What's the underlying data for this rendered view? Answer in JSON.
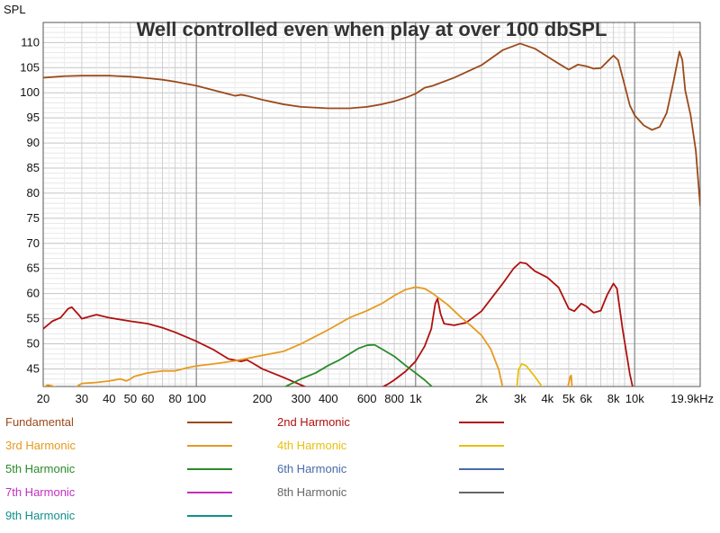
{
  "chart_data": {
    "type": "line",
    "title": "Well controlled even when play at over 100 dbSPL",
    "ylabel": "SPL",
    "xlabel": "",
    "x_scale": "log",
    "xlim": [
      20,
      19900
    ],
    "ylim": [
      41.5,
      114
    ],
    "grid": true,
    "x_ticks": [
      {
        "value": 20,
        "label": "20"
      },
      {
        "value": 30,
        "label": "30"
      },
      {
        "value": 40,
        "label": "40"
      },
      {
        "value": 50,
        "label": "50"
      },
      {
        "value": 60,
        "label": "60"
      },
      {
        "value": 80,
        "label": "80"
      },
      {
        "value": 100,
        "label": "100"
      },
      {
        "value": 200,
        "label": "200"
      },
      {
        "value": 300,
        "label": "300"
      },
      {
        "value": 400,
        "label": "400"
      },
      {
        "value": 600,
        "label": "600"
      },
      {
        "value": 800,
        "label": "800"
      },
      {
        "value": 1000,
        "label": "1k"
      },
      {
        "value": 2000,
        "label": "2k"
      },
      {
        "value": 3000,
        "label": "3k"
      },
      {
        "value": 4000,
        "label": "4k"
      },
      {
        "value": 5000,
        "label": "5k"
      },
      {
        "value": 6000,
        "label": "6k"
      },
      {
        "value": 8000,
        "label": "8k"
      },
      {
        "value": 10000,
        "label": "10k"
      },
      {
        "value": 19900,
        "label": "19.9kHz"
      }
    ],
    "y_ticks": [
      45,
      50,
      55,
      60,
      65,
      70,
      75,
      80,
      85,
      90,
      95,
      100,
      105,
      110
    ],
    "series": [
      {
        "name": "Fundamental",
        "color": "#9a4a1a",
        "visible": true,
        "points": [
          [
            20,
            103
          ],
          [
            25,
            103.3
          ],
          [
            30,
            103.4
          ],
          [
            40,
            103.4
          ],
          [
            50,
            103.2
          ],
          [
            60,
            102.9
          ],
          [
            70,
            102.6
          ],
          [
            80,
            102.2
          ],
          [
            100,
            101.4
          ],
          [
            120,
            100.5
          ],
          [
            150,
            99.4
          ],
          [
            160,
            99.6
          ],
          [
            170,
            99.4
          ],
          [
            200,
            98.6
          ],
          [
            250,
            97.7
          ],
          [
            300,
            97.2
          ],
          [
            400,
            96.9
          ],
          [
            500,
            96.9
          ],
          [
            600,
            97.2
          ],
          [
            700,
            97.7
          ],
          [
            800,
            98.3
          ],
          [
            900,
            99
          ],
          [
            1000,
            99.8
          ],
          [
            1100,
            101
          ],
          [
            1200,
            101.4
          ],
          [
            1500,
            103
          ],
          [
            2000,
            105.5
          ],
          [
            2500,
            108.5
          ],
          [
            3000,
            109.8
          ],
          [
            3500,
            108.8
          ],
          [
            4000,
            107.2
          ],
          [
            4500,
            105.8
          ],
          [
            5000,
            104.6
          ],
          [
            5500,
            105.6
          ],
          [
            6000,
            105.3
          ],
          [
            6500,
            104.8
          ],
          [
            7000,
            104.9
          ],
          [
            7500,
            106.2
          ],
          [
            8000,
            107.4
          ],
          [
            8400,
            106.5
          ],
          [
            9000,
            101.5
          ],
          [
            9500,
            97.5
          ],
          [
            10000,
            95.5
          ],
          [
            11000,
            93.5
          ],
          [
            12000,
            92.6
          ],
          [
            13000,
            93.2
          ],
          [
            14000,
            96
          ],
          [
            15000,
            102
          ],
          [
            16000,
            108.2
          ],
          [
            16500,
            106.5
          ],
          [
            17000,
            100.5
          ],
          [
            18000,
            95.5
          ],
          [
            19000,
            88.5
          ],
          [
            19900,
            77.5
          ]
        ]
      },
      {
        "name": "2nd Harmonic",
        "color": "#b01010",
        "visible": true,
        "points": [
          [
            20,
            53
          ],
          [
            22,
            54.5
          ],
          [
            24,
            55.2
          ],
          [
            26,
            57
          ],
          [
            27,
            57.3
          ],
          [
            29,
            55.8
          ],
          [
            30,
            55
          ],
          [
            33,
            55.5
          ],
          [
            35,
            55.8
          ],
          [
            40,
            55.2
          ],
          [
            50,
            54.5
          ],
          [
            60,
            54
          ],
          [
            70,
            53.2
          ],
          [
            80,
            52.3
          ],
          [
            100,
            50.5
          ],
          [
            120,
            48.8
          ],
          [
            140,
            47
          ],
          [
            160,
            46.5
          ],
          [
            170,
            46.8
          ],
          [
            180,
            46.2
          ],
          [
            200,
            45
          ],
          [
            250,
            43.3
          ],
          [
            300,
            41.8
          ],
          [
            320,
            41.3
          ]
        ]
      },
      {
        "name": "2nd Harmonic",
        "color": "#b01010",
        "visible": true,
        "points": [
          [
            700,
            41.3
          ],
          [
            750,
            42
          ],
          [
            800,
            42.8
          ],
          [
            900,
            44.5
          ],
          [
            1000,
            46.5
          ],
          [
            1100,
            49.5
          ],
          [
            1180,
            53
          ],
          [
            1230,
            58
          ],
          [
            1260,
            59
          ],
          [
            1300,
            56
          ],
          [
            1350,
            54
          ],
          [
            1500,
            53.7
          ],
          [
            1700,
            54.2
          ],
          [
            2000,
            56.5
          ],
          [
            2500,
            62
          ],
          [
            2800,
            65
          ],
          [
            3000,
            66.2
          ],
          [
            3200,
            66
          ],
          [
            3500,
            64.5
          ],
          [
            4000,
            63.2
          ],
          [
            4500,
            61.2
          ],
          [
            5000,
            57
          ],
          [
            5300,
            56.5
          ],
          [
            5700,
            58
          ],
          [
            6000,
            57.5
          ],
          [
            6500,
            56.2
          ],
          [
            7000,
            56.6
          ],
          [
            7500,
            59.8
          ],
          [
            8000,
            62
          ],
          [
            8300,
            61
          ],
          [
            8800,
            53
          ],
          [
            9500,
            44
          ],
          [
            9800,
            41.3
          ]
        ]
      },
      {
        "name": "3rd Harmonic",
        "color": "#e69a20",
        "visible": true,
        "points": [
          [
            20,
            41.3
          ],
          [
            21,
            41.8
          ],
          [
            22,
            41.6
          ],
          [
            23,
            41.3
          ]
        ]
      },
      {
        "name": "3rd Harmonic",
        "color": "#e69a20",
        "visible": true,
        "points": [
          [
            28,
            41.3
          ],
          [
            30,
            42.1
          ],
          [
            35,
            42.3
          ],
          [
            40,
            42.6
          ],
          [
            45,
            43
          ],
          [
            48,
            42.6
          ],
          [
            50,
            43
          ],
          [
            52,
            43.5
          ],
          [
            60,
            44.2
          ],
          [
            70,
            44.6
          ],
          [
            80,
            44.6
          ],
          [
            85,
            44.9
          ],
          [
            90,
            45.2
          ],
          [
            100,
            45.6
          ],
          [
            120,
            46
          ],
          [
            150,
            46.6
          ],
          [
            200,
            47.7
          ],
          [
            250,
            48.5
          ],
          [
            300,
            50
          ],
          [
            350,
            51.5
          ],
          [
            400,
            52.8
          ],
          [
            500,
            55.2
          ],
          [
            600,
            56.6
          ],
          [
            700,
            58
          ],
          [
            800,
            59.6
          ],
          [
            900,
            60.8
          ],
          [
            1000,
            61.3
          ],
          [
            1100,
            61
          ],
          [
            1200,
            60
          ],
          [
            1400,
            57.8
          ],
          [
            1600,
            55.4
          ],
          [
            1800,
            53.5
          ],
          [
            2000,
            51.7
          ],
          [
            2200,
            49
          ],
          [
            2400,
            44.8
          ],
          [
            2500,
            41.3
          ]
        ]
      },
      {
        "name": "3rd Harmonic",
        "color": "#e69a20",
        "visible": true,
        "points": [
          [
            4950,
            41.3
          ],
          [
            5080,
            43.5
          ],
          [
            5130,
            43.7
          ],
          [
            5180,
            41.3
          ]
        ]
      },
      {
        "name": "4th Harmonic",
        "color": "#e8c010",
        "visible": true,
        "points": [
          [
            2900,
            41.3
          ],
          [
            2950,
            44.8
          ],
          [
            3050,
            46
          ],
          [
            3200,
            45.6
          ],
          [
            3500,
            43.5
          ],
          [
            3800,
            41.3
          ]
        ]
      },
      {
        "name": "5th Harmonic",
        "color": "#2a8a2a",
        "visible": true,
        "points": [
          [
            250,
            41.3
          ],
          [
            300,
            43
          ],
          [
            350,
            44.2
          ],
          [
            400,
            45.7
          ],
          [
            450,
            46.8
          ],
          [
            500,
            48
          ],
          [
            550,
            49.1
          ],
          [
            600,
            49.7
          ],
          [
            650,
            49.8
          ],
          [
            700,
            49
          ],
          [
            800,
            47.5
          ],
          [
            900,
            45.7
          ],
          [
            1000,
            44.2
          ],
          [
            1100,
            42.8
          ],
          [
            1200,
            41.3
          ]
        ]
      }
    ],
    "legend": [
      {
        "label": "Fundamental",
        "color": "#9a4a1a"
      },
      {
        "label": "2nd Harmonic",
        "color": "#b01010"
      },
      {
        "label": "3rd Harmonic",
        "color": "#e69a20"
      },
      {
        "label": "4th Harmonic",
        "color": "#e8c010"
      },
      {
        "label": "5th Harmonic",
        "color": "#2a8a2a"
      },
      {
        "label": "6th Harmonic",
        "color": "#4a6aaa"
      },
      {
        "label": "7th Harmonic",
        "color": "#c030c0"
      },
      {
        "label": "8th Harmonic",
        "color": "#666666"
      },
      {
        "label": "9th Harmonic",
        "color": "#10908a"
      }
    ]
  }
}
